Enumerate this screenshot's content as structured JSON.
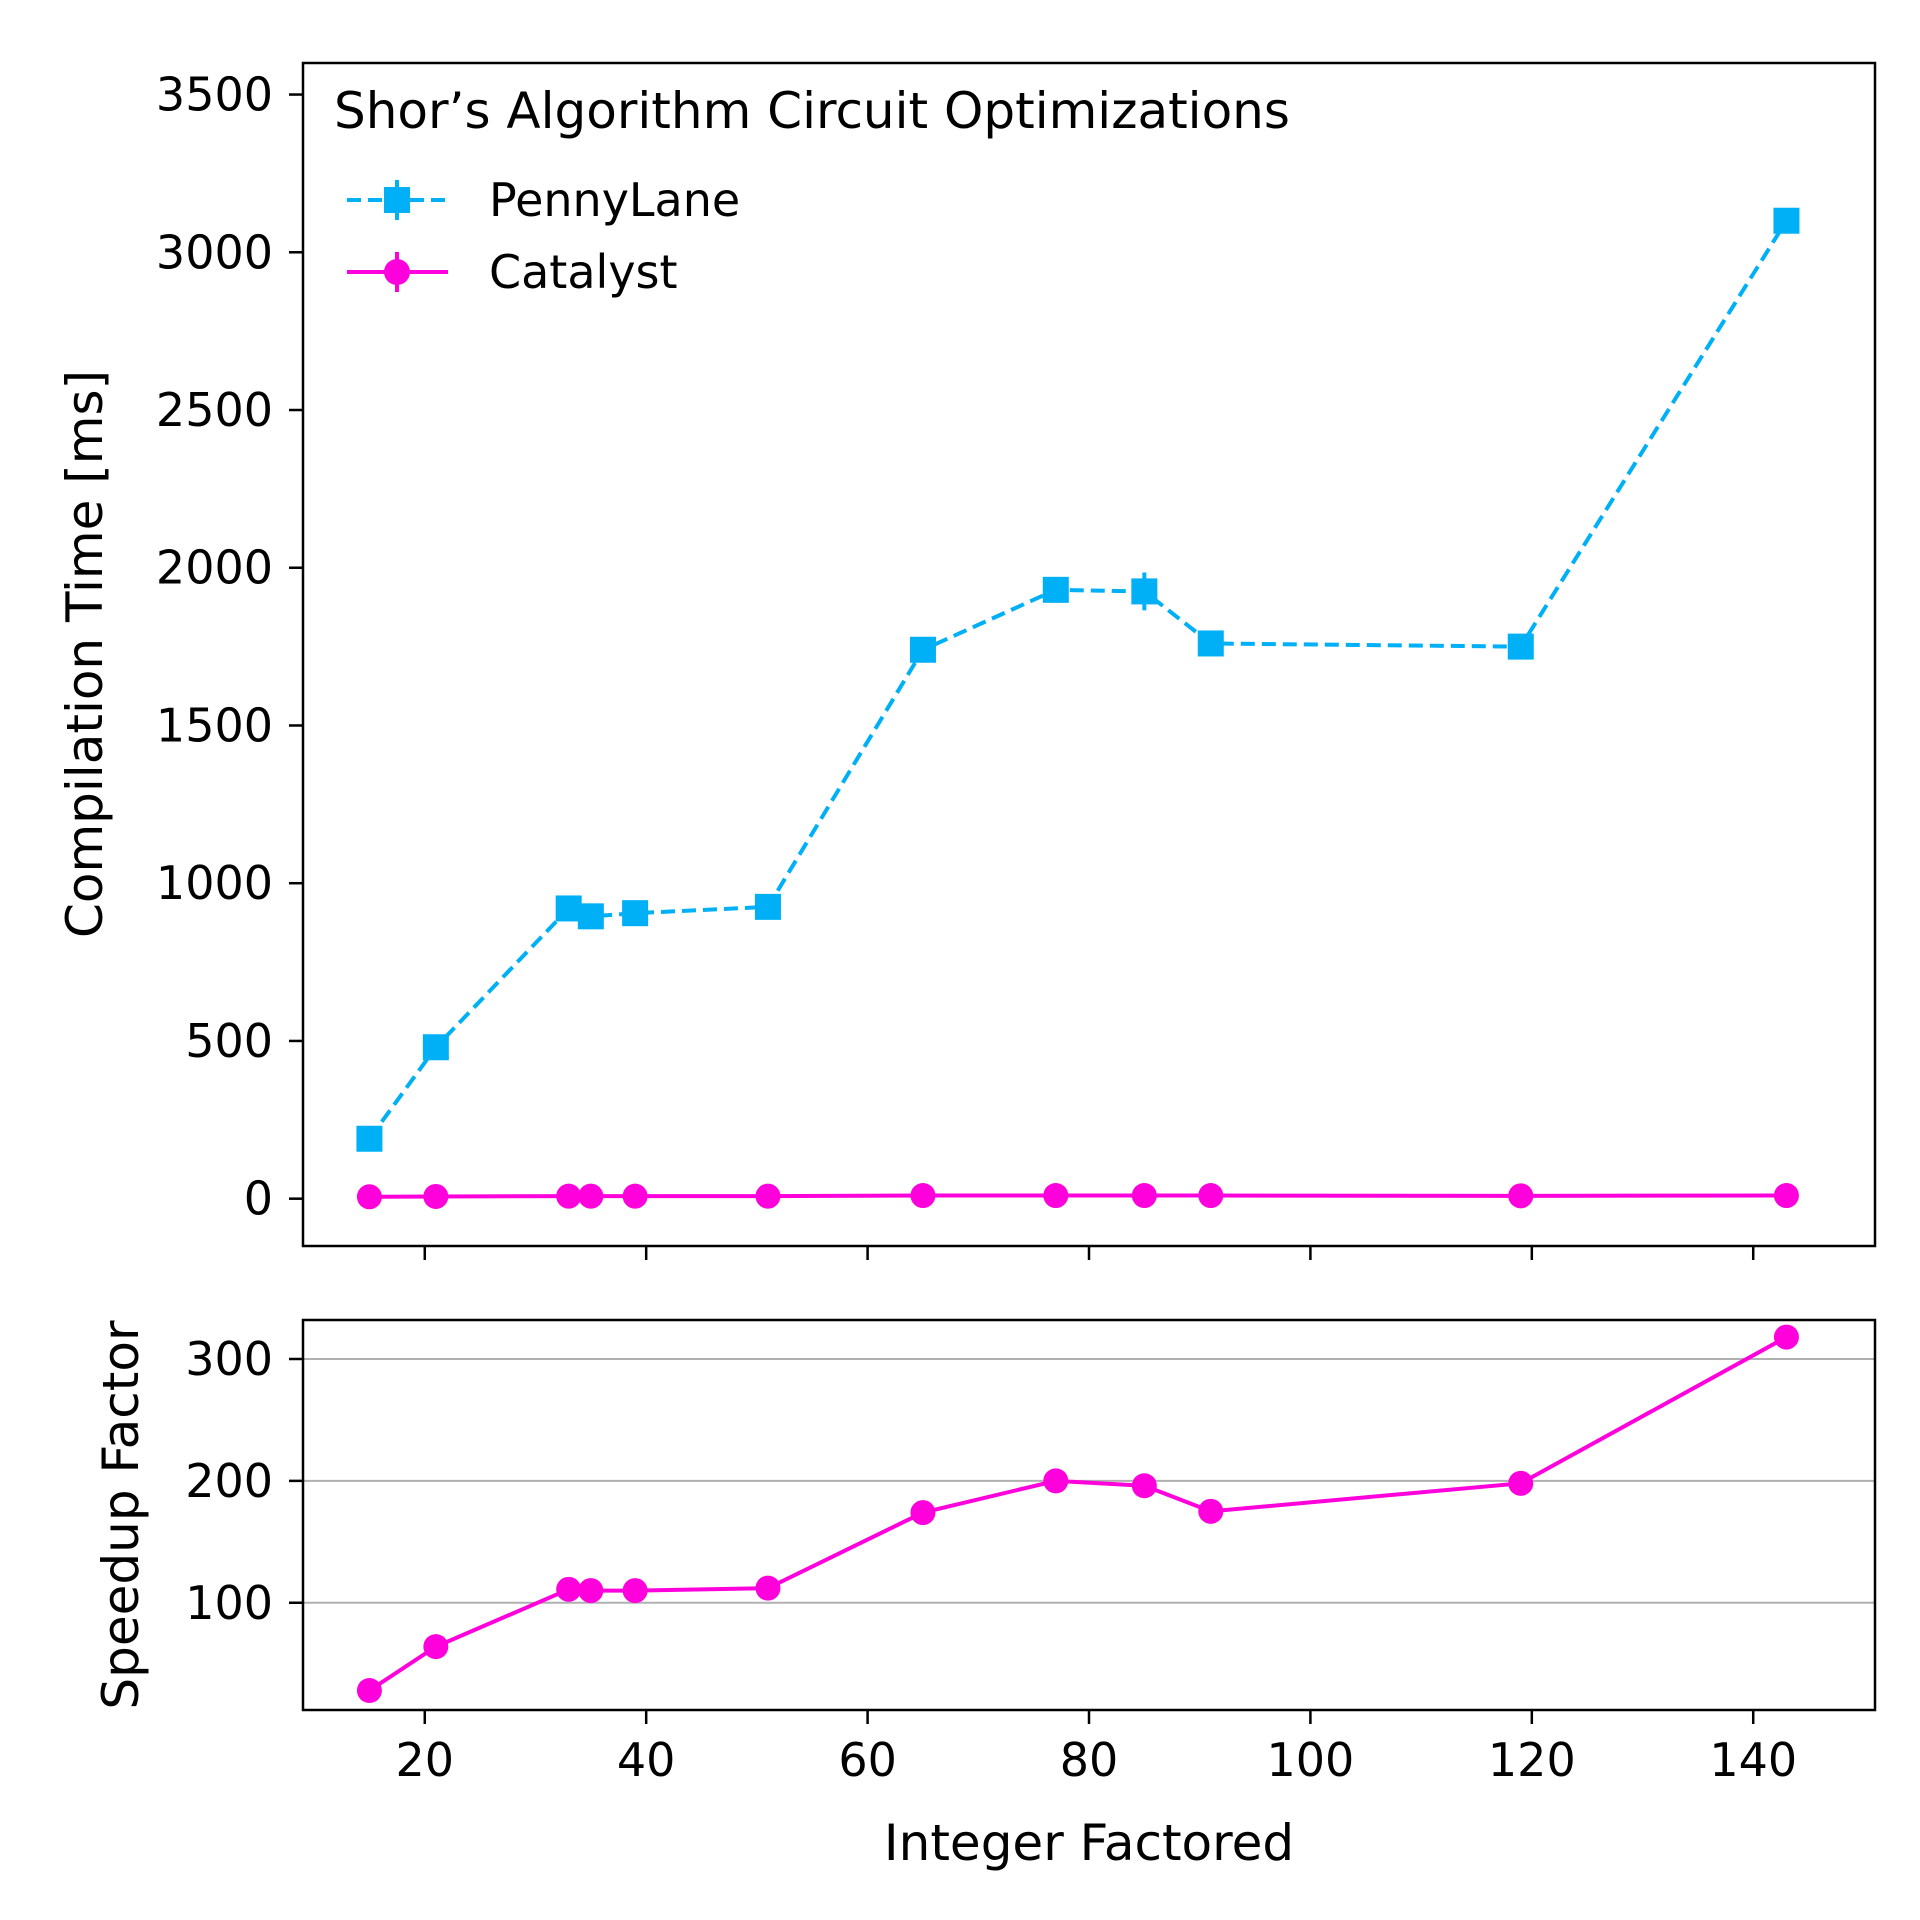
{
  "chart_data": [
    {
      "type": "line",
      "title": "Shor’s Algorithm Circuit Optimizations",
      "xlabel": "",
      "ylabel": "Compilation Time [ms]",
      "xlim": [
        9,
        151
      ],
      "ylim": [
        -150,
        3600
      ],
      "xticks": [
        20,
        40,
        60,
        80,
        100,
        120,
        140
      ],
      "yticks": [
        0,
        500,
        1000,
        1500,
        2000,
        2500,
        3000,
        3500
      ],
      "grid": false,
      "legend": "top-left",
      "series": [
        {
          "name": "PennyLane",
          "color": "#00b0f6",
          "marker": "square",
          "linestyle": "dashed",
          "x": [
            15,
            21,
            33,
            35,
            39,
            51,
            65,
            77,
            85,
            91,
            119,
            143
          ],
          "y": [
            190,
            480,
            920,
            895,
            905,
            925,
            1740,
            1930,
            1925,
            1760,
            1750,
            3100
          ],
          "yerr": [
            0,
            0,
            0,
            0,
            0,
            0,
            0,
            0,
            60,
            0,
            0,
            0
          ]
        },
        {
          "name": "Catalyst",
          "color": "#ff00dd",
          "marker": "circle",
          "linestyle": "solid",
          "x": [
            15,
            21,
            33,
            35,
            39,
            51,
            65,
            77,
            85,
            91,
            119,
            143
          ],
          "y": [
            6,
            7,
            8,
            8,
            8,
            8,
            10,
            10,
            10,
            10,
            9,
            10
          ]
        }
      ]
    },
    {
      "type": "line",
      "xlabel": "Integer Factored",
      "ylabel": "Speedup Factor",
      "xlim": [
        9,
        151
      ],
      "ylim": [
        12,
        332
      ],
      "xticks": [
        20,
        40,
        60,
        80,
        100,
        120,
        140
      ],
      "yticks": [
        100,
        200,
        300
      ],
      "grid": true,
      "series": [
        {
          "color": "#ff00dd",
          "marker": "circle",
          "linestyle": "solid",
          "x": [
            15,
            21,
            33,
            35,
            39,
            51,
            65,
            77,
            85,
            91,
            119,
            143
          ],
          "y": [
            28,
            64,
            111,
            110,
            110,
            112,
            174,
            200,
            196,
            175,
            198,
            318
          ]
        }
      ]
    }
  ]
}
